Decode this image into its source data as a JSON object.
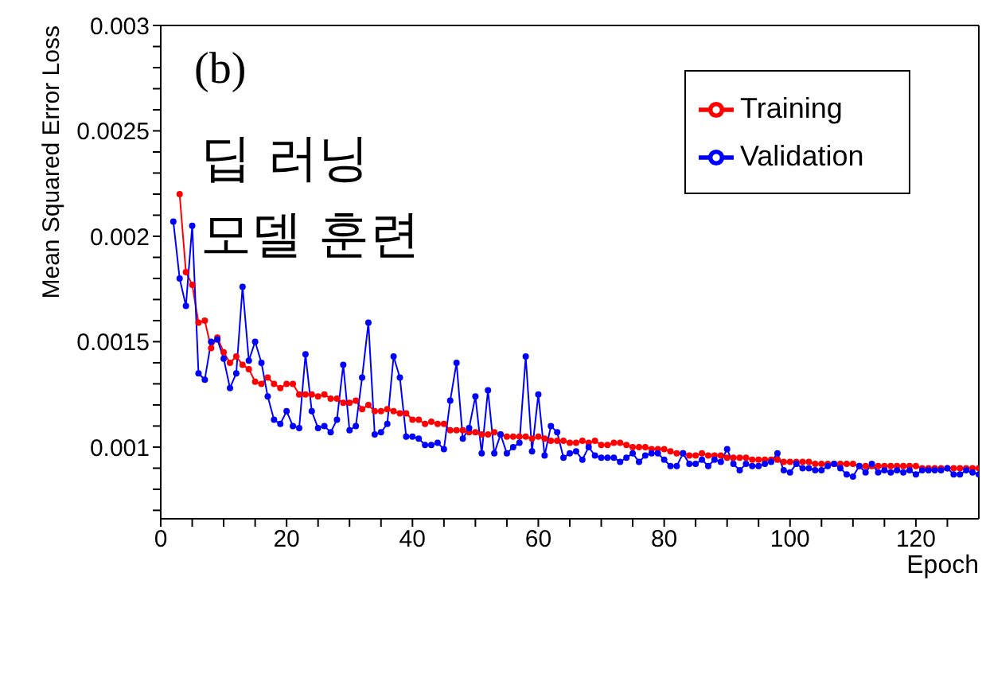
{
  "chart_data": {
    "type": "line",
    "title": "(b)",
    "annotations": [
      "딥 러닝",
      "모델 훈련"
    ],
    "xlabel": "Epoch",
    "ylabel": "Mean Squared Error Loss",
    "x": [
      2,
      3,
      4,
      5,
      6,
      7,
      8,
      9,
      10,
      11,
      12,
      13,
      14,
      15,
      16,
      17,
      18,
      19,
      20,
      21,
      22,
      23,
      24,
      25,
      26,
      27,
      28,
      29,
      30,
      31,
      32,
      33,
      34,
      35,
      36,
      37,
      38,
      39,
      40,
      41,
      42,
      43,
      44,
      45,
      46,
      47,
      48,
      49,
      50,
      51,
      52,
      53,
      54,
      55,
      56,
      57,
      58,
      59,
      60,
      61,
      62,
      63,
      64,
      65,
      66,
      67,
      68,
      69,
      70,
      71,
      72,
      73,
      74,
      75,
      76,
      77,
      78,
      79,
      80,
      81,
      82,
      83,
      84,
      85,
      86,
      87,
      88,
      89,
      90,
      91,
      92,
      93,
      94,
      95,
      96,
      97,
      98,
      99,
      100,
      101,
      102,
      103,
      104,
      105,
      106,
      107,
      108,
      109,
      110,
      111,
      112,
      113,
      114,
      115,
      116,
      117,
      118,
      119,
      120,
      121,
      122,
      123,
      124,
      125,
      126,
      127,
      128,
      129,
      130
    ],
    "series": [
      {
        "name": "Training",
        "color": "#ff0000",
        "values": [
          null,
          0.0022,
          0.00183,
          0.00177,
          0.00159,
          0.0016,
          0.00147,
          0.00152,
          0.00145,
          0.0014,
          0.00143,
          0.00139,
          0.00137,
          0.00131,
          0.0013,
          0.00133,
          0.0013,
          0.00128,
          0.0013,
          0.0013,
          0.00125,
          0.00125,
          0.00125,
          0.00124,
          0.00125,
          0.00123,
          0.00123,
          0.00121,
          0.00121,
          0.00122,
          0.00118,
          0.0012,
          0.00117,
          0.00117,
          0.00118,
          0.00117,
          0.00116,
          0.00116,
          0.00113,
          0.00113,
          0.00111,
          0.00112,
          0.00111,
          0.00111,
          0.00108,
          0.00108,
          0.00108,
          0.00107,
          0.00107,
          0.00106,
          0.00106,
          0.00107,
          0.00106,
          0.00105,
          0.00105,
          0.00105,
          0.00105,
          0.00104,
          0.00105,
          0.00104,
          0.00103,
          0.00103,
          0.00103,
          0.00102,
          0.00102,
          0.00103,
          0.00102,
          0.00103,
          0.00101,
          0.00101,
          0.00102,
          0.00102,
          0.00101,
          0.001,
          0.001,
          0.001,
          0.00099,
          0.00099,
          0.00099,
          0.00098,
          0.00097,
          0.00097,
          0.00096,
          0.00096,
          0.00097,
          0.00096,
          0.00096,
          0.00096,
          0.00095,
          0.00095,
          0.00095,
          0.00095,
          0.00094,
          0.00094,
          0.00094,
          0.00094,
          0.00094,
          0.00093,
          0.00093,
          0.00093,
          0.00093,
          0.00093,
          0.00092,
          0.00092,
          0.00092,
          0.00092,
          0.00092,
          0.00092,
          0.00092,
          0.00091,
          0.00091,
          0.00091,
          0.00091,
          0.00091,
          0.00091,
          0.00091,
          0.00091,
          0.00091,
          0.00091,
          0.0009,
          0.0009,
          0.0009,
          0.0009,
          0.0009,
          0.0009,
          0.0009,
          0.0009,
          0.0009,
          0.0009
        ]
      },
      {
        "name": "Validation",
        "color": "#0000ff",
        "values": [
          0.00207,
          0.0018,
          0.00167,
          0.00205,
          0.00135,
          0.00132,
          0.0015,
          0.00151,
          0.00142,
          0.00128,
          0.00135,
          0.00176,
          0.00141,
          0.0015,
          0.0014,
          0.00124,
          0.00113,
          0.00111,
          0.00117,
          0.0011,
          0.00109,
          0.00144,
          0.00117,
          0.00109,
          0.0011,
          0.00107,
          0.00113,
          0.00139,
          0.00108,
          0.0011,
          0.00133,
          0.00159,
          0.00106,
          0.00107,
          0.00111,
          0.00143,
          0.00133,
          0.00105,
          0.00105,
          0.00104,
          0.00101,
          0.00101,
          0.00102,
          0.00099,
          0.00122,
          0.0014,
          0.00104,
          0.00109,
          0.00124,
          0.00097,
          0.00127,
          0.00097,
          0.00106,
          0.00097,
          0.001,
          0.00102,
          0.00143,
          0.00098,
          0.00125,
          0.00096,
          0.0011,
          0.00107,
          0.00095,
          0.00097,
          0.00098,
          0.00094,
          0.001,
          0.00096,
          0.00095,
          0.00095,
          0.00095,
          0.00093,
          0.00095,
          0.00097,
          0.00093,
          0.00096,
          0.00097,
          0.00097,
          0.00094,
          0.00091,
          0.00091,
          0.00097,
          0.00092,
          0.00092,
          0.00094,
          0.00091,
          0.00094,
          0.00093,
          0.00099,
          0.00092,
          0.00089,
          0.00092,
          0.00091,
          0.00091,
          0.00092,
          0.00093,
          0.00097,
          0.00089,
          0.00088,
          0.00092,
          0.0009,
          0.0009,
          0.00089,
          0.00089,
          0.00091,
          0.00092,
          0.0009,
          0.00087,
          0.00086,
          0.00091,
          0.00088,
          0.00092,
          0.00088,
          0.00089,
          0.00088,
          0.00089,
          0.00088,
          0.00089,
          0.00087,
          0.00089,
          0.00089,
          0.00089,
          0.00089,
          0.0009,
          0.00087,
          0.00087,
          0.00089,
          0.00088,
          0.00087
        ]
      }
    ],
    "xlim": [
      0,
      130
    ],
    "xticks": [
      0,
      {
        "value": 5,
        "label": null
      },
      {
        "value": 10,
        "label": null
      },
      {
        "value": 15,
        "label": null
      },
      20,
      {
        "value": 25,
        "label": null
      },
      {
        "value": 30,
        "label": null
      },
      {
        "value": 35,
        "label": null
      },
      40,
      {
        "value": 45,
        "label": null
      },
      {
        "value": 50,
        "label": null
      },
      {
        "value": 55,
        "label": null
      },
      60,
      {
        "value": 65,
        "label": null
      },
      {
        "value": 70,
        "label": null
      },
      {
        "value": 75,
        "label": null
      },
      80,
      {
        "value": 85,
        "label": null
      },
      {
        "value": 90,
        "label": null
      },
      {
        "value": 95,
        "label": null
      },
      100,
      {
        "value": 105,
        "label": null
      },
      {
        "value": 110,
        "label": null
      },
      {
        "value": 115,
        "label": null
      },
      120,
      {
        "value": 125,
        "label": null
      }
    ],
    "ylim": [
      0.00066,
      0.003
    ],
    "yticks": [
      {
        "value": 0.0007,
        "label": null
      },
      {
        "value": 0.0008,
        "label": null
      },
      {
        "value": 0.0009,
        "label": null
      },
      0.001,
      {
        "value": 0.0011,
        "label": null
      },
      {
        "value": 0.0012,
        "label": null
      },
      {
        "value": 0.0013,
        "label": null
      },
      {
        "value": 0.0014,
        "label": null
      },
      0.0015,
      {
        "value": 0.0016,
        "label": null
      },
      {
        "value": 0.0017,
        "label": null
      },
      {
        "value": 0.0018,
        "label": null
      },
      {
        "value": 0.0019,
        "label": null
      },
      0.002,
      {
        "value": 0.0021,
        "label": null
      },
      {
        "value": 0.0022,
        "label": null
      },
      {
        "value": 0.0023,
        "label": null
      },
      {
        "value": 0.0024,
        "label": null
      },
      0.0025,
      {
        "value": 0.0026,
        "label": null
      },
      {
        "value": 0.0027,
        "label": null
      },
      {
        "value": 0.0028,
        "label": null
      },
      {
        "value": 0.0029,
        "label": null
      },
      0.003
    ],
    "grid": false,
    "legend": "top right",
    "marker": "circle",
    "line_style": "solid"
  }
}
